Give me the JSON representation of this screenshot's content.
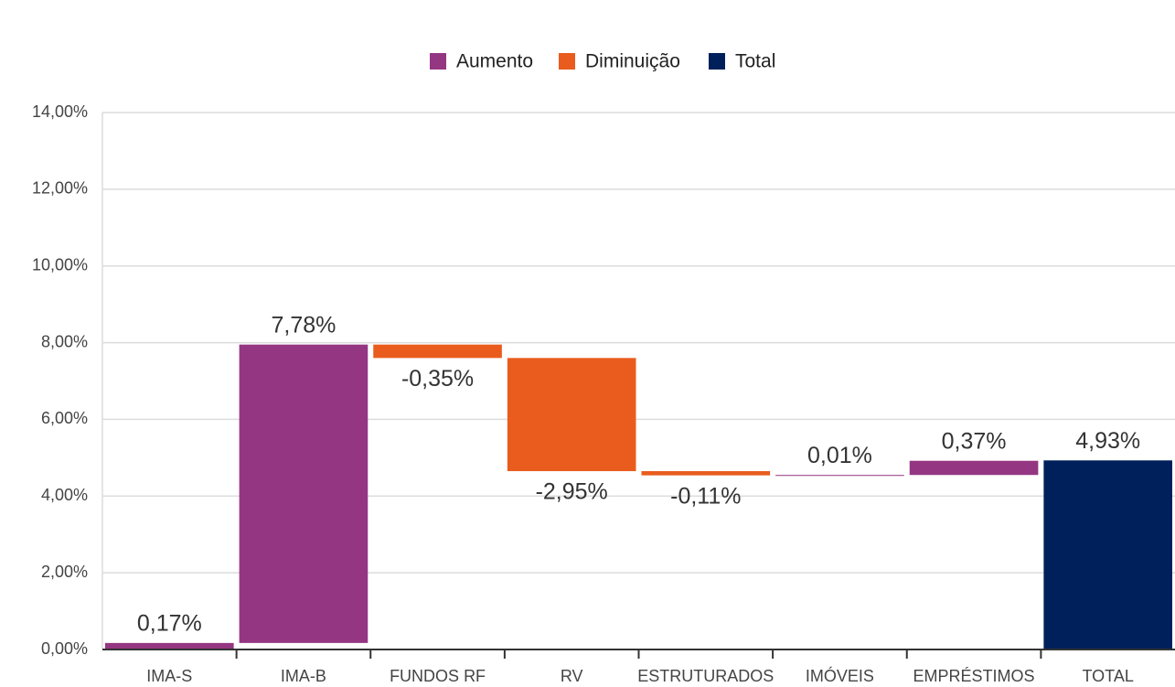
{
  "chart_data": {
    "type": "waterfall",
    "categories": [
      "IMA-S",
      "IMA-B",
      "FUNDOS RF",
      "RV",
      "ESTRUTURADOS",
      "IMÓVEIS",
      "EMPRÉSTIMOS",
      "TOTAL"
    ],
    "values": [
      0.17,
      7.78,
      -0.35,
      -2.95,
      -0.11,
      0.01,
      0.37,
      4.93
    ],
    "value_labels": [
      "0,17%",
      "7,78%",
      "-0,35%",
      "-2,95%",
      "-0,11%",
      "0,01%",
      "0,37%",
      "4,93%"
    ],
    "legend": [
      {
        "name": "Aumento",
        "color": "#943682"
      },
      {
        "name": "Diminuição",
        "color": "#e95c1e"
      },
      {
        "name": "Total",
        "color": "#00205b"
      }
    ],
    "ylim": [
      0,
      14
    ],
    "yticks": [
      {
        "value": 0,
        "label": "0,00%"
      },
      {
        "value": 2,
        "label": "2,00%"
      },
      {
        "value": 4,
        "label": "4,00%"
      },
      {
        "value": 6,
        "label": "6,00%"
      },
      {
        "value": 8,
        "label": "8,00%"
      },
      {
        "value": 10,
        "label": "10,00%"
      },
      {
        "value": 12,
        "label": "12,00%"
      },
      {
        "value": 14,
        "label": "14,00%"
      }
    ],
    "grid": true
  }
}
